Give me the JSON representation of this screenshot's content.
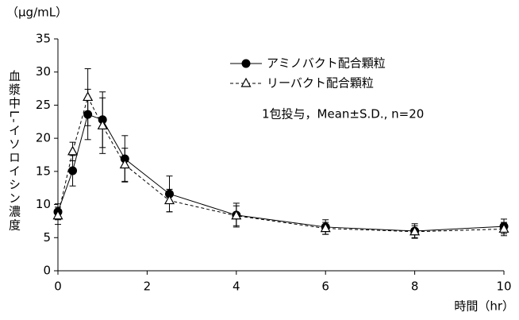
{
  "chart_data": {
    "type": "line",
    "y_unit": "（μg/mL）",
    "ylabel": "血漿中L-イソロイシン濃度",
    "xlabel": "時間（hr）",
    "annotation": "1包投与，Mean±S.D., n=20",
    "x": [
      0,
      0.33,
      0.67,
      1,
      1.5,
      2.5,
      4,
      6,
      8,
      10
    ],
    "series": [
      {
        "name": "アミノバクト配合顆粒",
        "color": "#000000",
        "marker": "circle",
        "dashed": false,
        "values": [
          8.9,
          15.1,
          23.6,
          22.8,
          16.9,
          11.6,
          8.4,
          6.6,
          6.0,
          6.7
        ],
        "errors": [
          1.2,
          2.3,
          3.8,
          4.2,
          3.5,
          2.7,
          1.8,
          1.1,
          1.1,
          1.1
        ]
      },
      {
        "name": "リーバクト配合顆粒",
        "color": "#000000",
        "marker": "triangle",
        "dashed": true,
        "values": [
          8.3,
          18.0,
          26.2,
          21.9,
          16.0,
          10.6,
          8.3,
          6.4,
          5.9,
          6.3
        ],
        "errors": [
          1.3,
          1.4,
          4.3,
          4.2,
          2.5,
          1.7,
          1.5,
          0.9,
          0.9,
          1.0
        ]
      }
    ],
    "xlim": [
      0,
      10
    ],
    "xticks": [
      0,
      2,
      4,
      6,
      8,
      10
    ],
    "ylim": [
      0,
      35
    ],
    "yticks": [
      0,
      5,
      10,
      15,
      20,
      25,
      30,
      35
    ]
  }
}
